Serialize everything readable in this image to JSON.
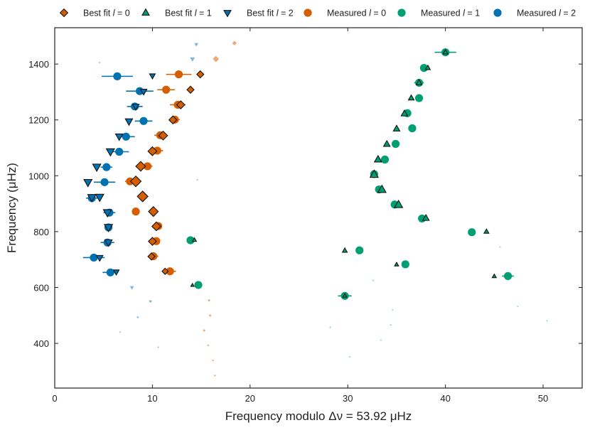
{
  "chart_data": {
    "type": "scatter",
    "title": "",
    "xlabel": "Frequency modulo Δν = 53.92 μHz",
    "ylabel": "Frequency (μHz)",
    "xlim": [
      0,
      54
    ],
    "ylim": [
      240,
      1530
    ],
    "xticks": [
      0,
      10,
      20,
      30,
      40,
      50
    ],
    "yticks": [
      400,
      600,
      800,
      1000,
      1200,
      1400
    ],
    "xtick_labels": [
      "0",
      "10",
      "20",
      "30",
      "40",
      "50"
    ],
    "ytick_labels": [
      "400",
      "600",
      "800",
      "1000",
      "1200",
      "1400"
    ],
    "grid": false,
    "legend_position": "top, outside the axes",
    "legend": [
      {
        "key": "fit0",
        "label": "Best fit l = 0",
        "prefix": "Best fit ",
        "symbol": "l",
        "suffix": " = 0"
      },
      {
        "key": "fit1",
        "label": "Best fit l = 1",
        "prefix": "Best fit ",
        "symbol": "l",
        "suffix": " = 1"
      },
      {
        "key": "fit2",
        "label": "Best fit l = 2",
        "prefix": "Best fit ",
        "symbol": "l",
        "suffix": " = 2"
      },
      {
        "key": "meas0",
        "label": "Measured l = 0",
        "prefix": "Measured ",
        "symbol": "l",
        "suffix": " = 0"
      },
      {
        "key": "meas1",
        "label": "Measured l = 1",
        "prefix": "Measured ",
        "symbol": "l",
        "suffix": " = 1"
      },
      {
        "key": "meas2",
        "label": "Measured l = 2",
        "prefix": "Measured ",
        "symbol": "l",
        "suffix": " = 2"
      }
    ],
    "colors": {
      "l0": "#d55e00",
      "l1": "#009e73",
      "l2": "#0072b2",
      "l0_faint": "#f0a66e",
      "l1_faint": "#7fd3bc",
      "l2_faint": "#7fb5e0",
      "edge": "#111111",
      "axes": "#222222"
    },
    "series": [
      {
        "name": "Best fit l = 0",
        "marker": "diamond",
        "color": "#d55e00",
        "points": [
          {
            "x": 18.4,
            "y": 1475,
            "size": 5,
            "faint": true
          },
          {
            "x": 16.5,
            "y": 1418,
            "size": 7,
            "faint": true
          },
          {
            "x": 14.9,
            "y": 1363,
            "size": 8
          },
          {
            "x": 13.9,
            "y": 1308,
            "size": 8
          },
          {
            "x": 12.9,
            "y": 1254,
            "size": 9
          },
          {
            "x": 12.1,
            "y": 1200,
            "size": 9
          },
          {
            "x": 11.1,
            "y": 1144,
            "size": 10
          },
          {
            "x": 10.0,
            "y": 1088,
            "size": 10
          },
          {
            "x": 8.8,
            "y": 1034,
            "size": 11
          },
          {
            "x": 8.3,
            "y": 980,
            "size": 12
          },
          {
            "x": 9.0,
            "y": 926,
            "size": 12
          },
          {
            "x": 10.1,
            "y": 872,
            "size": 11
          },
          {
            "x": 10.4,
            "y": 819,
            "size": 10
          },
          {
            "x": 10.0,
            "y": 765,
            "size": 9
          },
          {
            "x": 9.9,
            "y": 711,
            "size": 8
          },
          {
            "x": 11.3,
            "y": 658,
            "size": 7
          },
          {
            "x": 15.8,
            "y": 554,
            "size": 3,
            "faint": true
          },
          {
            "x": 15.9,
            "y": 500,
            "size": 3,
            "faint": true
          },
          {
            "x": 15.3,
            "y": 446,
            "size": 3,
            "faint": true
          },
          {
            "x": 15.7,
            "y": 393,
            "size": 2,
            "faint": true
          },
          {
            "x": 16.2,
            "y": 339,
            "size": 2,
            "faint": true
          },
          {
            "x": 16.4,
            "y": 285,
            "size": 2,
            "faint": true
          }
        ]
      },
      {
        "name": "Best fit l = 1",
        "marker": "triangle-up",
        "color": "#009e73",
        "points": [
          {
            "x": 40.0,
            "y": 1442,
            "size": 6
          },
          {
            "x": 38.2,
            "y": 1386,
            "size": 6
          },
          {
            "x": 37.3,
            "y": 1333,
            "size": 7
          },
          {
            "x": 36.5,
            "y": 1278,
            "size": 7
          },
          {
            "x": 35.8,
            "y": 1222,
            "size": 8
          },
          {
            "x": 35.0,
            "y": 1168,
            "size": 8
          },
          {
            "x": 34.0,
            "y": 1113,
            "size": 8
          },
          {
            "x": 33.1,
            "y": 1058,
            "size": 9
          },
          {
            "x": 32.7,
            "y": 1004,
            "size": 10
          },
          {
            "x": 33.5,
            "y": 950,
            "size": 10
          },
          {
            "x": 35.2,
            "y": 896,
            "size": 10
          },
          {
            "x": 38.0,
            "y": 848,
            "size": 8
          },
          {
            "x": 44.2,
            "y": 800,
            "size": 6
          },
          {
            "x": 14.3,
            "y": 770,
            "size": 5
          },
          {
            "x": 29.7,
            "y": 732,
            "size": 6
          },
          {
            "x": 45.6,
            "y": 745,
            "size": 2,
            "faint": true
          },
          {
            "x": 35.0,
            "y": 682,
            "size": 5
          },
          {
            "x": 45.0,
            "y": 640,
            "size": 5
          },
          {
            "x": 14.1,
            "y": 608,
            "size": 4
          },
          {
            "x": 32.6,
            "y": 626,
            "size": 2,
            "faint": true
          },
          {
            "x": 29.7,
            "y": 570,
            "size": 5
          },
          {
            "x": 47.4,
            "y": 533,
            "size": 2,
            "faint": true
          },
          {
            "x": 34.6,
            "y": 520,
            "size": 2,
            "faint": true
          },
          {
            "x": 50.4,
            "y": 481,
            "size": 2,
            "faint": true
          },
          {
            "x": 28.2,
            "y": 458,
            "size": 2,
            "faint": true
          },
          {
            "x": 34.4,
            "y": 466,
            "size": 2,
            "faint": true
          },
          {
            "x": 33.4,
            "y": 412,
            "size": 2,
            "faint": true
          },
          {
            "x": 30.2,
            "y": 352,
            "size": 2,
            "faint": true
          }
        ]
      },
      {
        "name": "Best fit l = 2",
        "marker": "triangle-down",
        "color": "#0072b2",
        "points": [
          {
            "x": 14.5,
            "y": 1470,
            "size": 5,
            "faint": true
          },
          {
            "x": 4.6,
            "y": 1405,
            "size": 2,
            "faint": true
          },
          {
            "x": 14.1,
            "y": 1418,
            "size": 6,
            "faint": true
          },
          {
            "x": 10.0,
            "y": 1358,
            "size": 7
          },
          {
            "x": 9.1,
            "y": 1302,
            "size": 8
          },
          {
            "x": 8.3,
            "y": 1248,
            "size": 8
          },
          {
            "x": 7.6,
            "y": 1195,
            "size": 9
          },
          {
            "x": 6.6,
            "y": 1141,
            "size": 9
          },
          {
            "x": 5.7,
            "y": 1087,
            "size": 10
          },
          {
            "x": 4.3,
            "y": 1032,
            "size": 10
          },
          {
            "x": 3.4,
            "y": 977,
            "size": 10
          },
          {
            "x": 3.8,
            "y": 923,
            "size": 10
          },
          {
            "x": 4.6,
            "y": 924,
            "size": 10
          },
          {
            "x": 5.4,
            "y": 869,
            "size": 10
          },
          {
            "x": 5.5,
            "y": 816,
            "size": 10
          },
          {
            "x": 14.6,
            "y": 985,
            "size": 2,
            "faint": true
          },
          {
            "x": 5.5,
            "y": 762,
            "size": 9
          },
          {
            "x": 4.6,
            "y": 707,
            "size": 8
          },
          {
            "x": 6.3,
            "y": 656,
            "size": 7
          },
          {
            "x": 7.9,
            "y": 600,
            "size": 5,
            "faint": true
          },
          {
            "x": 9.8,
            "y": 550,
            "size": 4,
            "faint": true
          },
          {
            "x": 8.5,
            "y": 493,
            "size": 3,
            "faint": true
          },
          {
            "x": 6.7,
            "y": 440,
            "size": 2,
            "faint": true
          },
          {
            "x": 10.6,
            "y": 386,
            "size": 2,
            "faint": true
          }
        ]
      },
      {
        "name": "Measured l = 0",
        "marker": "circle",
        "color": "#d55e00",
        "points": [
          {
            "x": 12.7,
            "y": 1363,
            "xerr": 1.3
          },
          {
            "x": 11.4,
            "y": 1308,
            "xerr": 0.9
          },
          {
            "x": 12.6,
            "y": 1254,
            "xerr": 0.8
          },
          {
            "x": 12.3,
            "y": 1201,
            "xerr": 0.5
          },
          {
            "x": 10.8,
            "y": 1145,
            "xerr": 0.6
          },
          {
            "x": 10.5,
            "y": 1090,
            "xerr": 0.6
          },
          {
            "x": 9.5,
            "y": 1034,
            "xerr": 0.5
          },
          {
            "x": 7.7,
            "y": 980,
            "xerr": 0.5
          },
          {
            "x": 8.3,
            "y": 872,
            "xerr": 0.4
          },
          {
            "x": 10.6,
            "y": 820,
            "xerr": 0.3
          },
          {
            "x": 10.4,
            "y": 766,
            "xerr": 0.3
          },
          {
            "x": 10.1,
            "y": 712,
            "xerr": 0.5
          },
          {
            "x": 11.8,
            "y": 658,
            "xerr": 0.6
          }
        ]
      },
      {
        "name": "Measured l = 1",
        "marker": "circle",
        "color": "#009e73",
        "points": [
          {
            "x": 40.0,
            "y": 1442,
            "xerr": 1.1
          },
          {
            "x": 37.8,
            "y": 1386,
            "xerr": 0.4
          },
          {
            "x": 37.3,
            "y": 1333,
            "xerr": 0.5
          },
          {
            "x": 37.3,
            "y": 1278,
            "xerr": 0.4
          },
          {
            "x": 36.1,
            "y": 1224,
            "xerr": 0.3
          },
          {
            "x": 36.6,
            "y": 1170,
            "xerr": 0.3
          },
          {
            "x": 34.9,
            "y": 1114,
            "xerr": 0.4
          },
          {
            "x": 33.8,
            "y": 1058,
            "xerr": 0.3
          },
          {
            "x": 32.7,
            "y": 1006,
            "xerr": 0.3
          },
          {
            "x": 33.2,
            "y": 951,
            "xerr": 0.3
          },
          {
            "x": 34.8,
            "y": 897,
            "xerr": 0.3
          },
          {
            "x": 37.6,
            "y": 847,
            "xerr": 0.3
          },
          {
            "x": 42.7,
            "y": 798,
            "xerr": 0.3
          },
          {
            "x": 13.9,
            "y": 769,
            "xerr": 0.3
          },
          {
            "x": 31.2,
            "y": 733,
            "xerr": 0.3
          },
          {
            "x": 35.9,
            "y": 683,
            "xerr": 0.3
          },
          {
            "x": 46.4,
            "y": 641,
            "xerr": 0.6
          },
          {
            "x": 14.7,
            "y": 609,
            "xerr": 0.3
          },
          {
            "x": 29.7,
            "y": 570,
            "xerr": 0.7
          }
        ]
      },
      {
        "name": "Measured l = 2",
        "marker": "circle",
        "color": "#0072b2",
        "points": [
          {
            "x": 6.4,
            "y": 1356,
            "xerr": 1.6
          },
          {
            "x": 8.7,
            "y": 1303,
            "xerr": 1.4
          },
          {
            "x": 8.2,
            "y": 1248,
            "xerr": 0.8
          },
          {
            "x": 9.1,
            "y": 1196,
            "xerr": 0.9
          },
          {
            "x": 7.3,
            "y": 1140,
            "xerr": 0.9
          },
          {
            "x": 6.6,
            "y": 1086,
            "xerr": 1.0
          },
          {
            "x": 5.3,
            "y": 1031,
            "xerr": 0.6
          },
          {
            "x": 5.1,
            "y": 977,
            "xerr": 1.1
          },
          {
            "x": 3.8,
            "y": 920,
            "xerr": 0.6
          },
          {
            "x": 5.6,
            "y": 868,
            "xerr": 0.6
          },
          {
            "x": 5.5,
            "y": 815,
            "xerr": 0.4
          },
          {
            "x": 5.4,
            "y": 761,
            "xerr": 0.7
          },
          {
            "x": 4.0,
            "y": 707,
            "xerr": 1.1
          },
          {
            "x": 5.7,
            "y": 654,
            "xerr": 0.8
          }
        ]
      }
    ]
  }
}
